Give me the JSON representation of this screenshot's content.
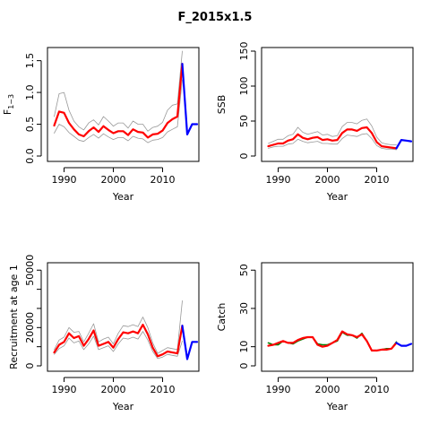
{
  "title": "F_2015x1.5",
  "chart_data": [
    {
      "type": "line",
      "xlabel": "Year",
      "ylabel": "F",
      "ylabel_sub": "1−3",
      "xlim": [
        1987,
        2017
      ],
      "ylim": [
        0,
        1.65
      ],
      "xticks": [
        1990,
        2000,
        2010
      ],
      "yticks": [
        0.0,
        0.5,
        1.0,
        1.5
      ],
      "yticklabels": [
        "0.0",
        "0.5",
        "1.0",
        "1.5"
      ],
      "colors": {
        "estimate": "#ff0000",
        "interval": "#999999",
        "projection": "#0000ff"
      },
      "series": [
        {
          "role": "estimate",
          "x": [
            1988,
            1989,
            1990,
            1991,
            1992,
            1993,
            1994,
            1995,
            1996,
            1997,
            1998,
            1999,
            2000,
            2001,
            2002,
            2003,
            2004,
            2005,
            2006,
            2007,
            2008,
            2009,
            2010,
            2011,
            2012,
            2013,
            2014
          ],
          "values": [
            0.48,
            0.7,
            0.68,
            0.52,
            0.42,
            0.34,
            0.31,
            0.39,
            0.45,
            0.38,
            0.47,
            0.41,
            0.36,
            0.39,
            0.39,
            0.33,
            0.42,
            0.38,
            0.37,
            0.29,
            0.34,
            0.35,
            0.4,
            0.52,
            0.58,
            0.62,
            1.45
          ]
        },
        {
          "role": "interval",
          "x": [
            1988,
            1989,
            1990,
            1991,
            1992,
            1993,
            1994,
            1995,
            1996,
            1997,
            1998,
            1999,
            2000,
            2001,
            2002,
            2003,
            2004,
            2005,
            2006,
            2007,
            2008,
            2009,
            2010,
            2011,
            2012,
            2013,
            2014
          ],
          "values": [
            0.62,
            0.98,
            1.0,
            0.72,
            0.55,
            0.46,
            0.41,
            0.52,
            0.57,
            0.49,
            0.62,
            0.55,
            0.47,
            0.52,
            0.52,
            0.44,
            0.55,
            0.5,
            0.5,
            0.39,
            0.45,
            0.47,
            0.53,
            0.72,
            0.8,
            0.82,
            1.65
          ]
        },
        {
          "role": "interval",
          "x": [
            1988,
            1989,
            1990,
            1991,
            1992,
            1993,
            1994,
            1995,
            1996,
            1997,
            1998,
            1999,
            2000,
            2001,
            2002,
            2003,
            2004,
            2005,
            2006,
            2007,
            2008,
            2009,
            2010,
            2011,
            2012,
            2013,
            2014
          ],
          "values": [
            0.36,
            0.5,
            0.46,
            0.37,
            0.31,
            0.25,
            0.23,
            0.29,
            0.34,
            0.28,
            0.35,
            0.3,
            0.26,
            0.29,
            0.29,
            0.24,
            0.31,
            0.28,
            0.27,
            0.21,
            0.25,
            0.26,
            0.29,
            0.38,
            0.42,
            0.46,
            1.2
          ]
        },
        {
          "role": "projection",
          "x": [
            2014,
            2015,
            2016,
            2017
          ],
          "values": [
            1.45,
            0.34,
            0.5,
            0.5
          ]
        }
      ]
    },
    {
      "type": "line",
      "xlabel": "Year",
      "ylabel": "SSB",
      "xlim": [
        1987,
        2017
      ],
      "ylim": [
        0,
        150
      ],
      "xticks": [
        1990,
        2000,
        2010
      ],
      "yticks": [
        0,
        50,
        100,
        150
      ],
      "yticklabels": [
        "0",
        "50",
        "100",
        "150"
      ],
      "colors": {
        "estimate": "#ff0000",
        "interval": "#999999",
        "projection": "#0000ff"
      },
      "series": [
        {
          "role": "estimate",
          "x": [
            1988,
            1989,
            1990,
            1991,
            1992,
            1993,
            1994,
            1995,
            1996,
            1997,
            1998,
            1999,
            2000,
            2001,
            2002,
            2003,
            2004,
            2005,
            2006,
            2007,
            2008,
            2009,
            2010,
            2011,
            2012,
            2013,
            2014
          ],
          "values": [
            14,
            16,
            18,
            18,
            22,
            24,
            31,
            26,
            24,
            26,
            27,
            23,
            24,
            22,
            23,
            33,
            38,
            38,
            36,
            40,
            41,
            33,
            20,
            14,
            13,
            12,
            11
          ]
        },
        {
          "role": "interval",
          "x": [
            1988,
            1989,
            1990,
            1991,
            1992,
            1993,
            1994,
            1995,
            1996,
            1997,
            1998,
            1999,
            2000,
            2001,
            2002,
            2003,
            2004,
            2005,
            2006,
            2007,
            2008,
            2009,
            2010,
            2011,
            2012,
            2013,
            2014
          ],
          "values": [
            18,
            21,
            24,
            24,
            29,
            31,
            41,
            34,
            31,
            33,
            35,
            30,
            31,
            28,
            29,
            42,
            48,
            48,
            46,
            51,
            53,
            43,
            27,
            19,
            17,
            16,
            16
          ]
        },
        {
          "role": "interval",
          "x": [
            1988,
            1989,
            1990,
            1991,
            1992,
            1993,
            1994,
            1995,
            1996,
            1997,
            1998,
            1999,
            2000,
            2001,
            2002,
            2003,
            2004,
            2005,
            2006,
            2007,
            2008,
            2009,
            2010,
            2011,
            2012,
            2013,
            2014
          ],
          "values": [
            11,
            13,
            14,
            14,
            17,
            18,
            24,
            21,
            19,
            20,
            21,
            18,
            18,
            17,
            17,
            25,
            30,
            29,
            28,
            31,
            32,
            25,
            15,
            11,
            10,
            10,
            9
          ]
        },
        {
          "role": "projection",
          "x": [
            2014,
            2015,
            2016,
            2017
          ],
          "values": [
            11,
            23,
            22,
            21
          ]
        }
      ]
    },
    {
      "type": "line",
      "xlabel": "Year",
      "ylabel": "Recruitment at age 1",
      "xlim": [
        1987,
        2017
      ],
      "ylim": [
        0,
        52000
      ],
      "xticks": [
        1990,
        2000,
        2010
      ],
      "yticks": [
        0,
        10000,
        20000,
        30000,
        40000,
        50000
      ],
      "yticklabels": [
        "0",
        "",
        "20000",
        "",
        "",
        "50000"
      ],
      "colors": {
        "estimate": "#ff0000",
        "interval": "#999999",
        "projection": "#0000ff"
      },
      "series": [
        {
          "role": "estimate",
          "x": [
            1988,
            1989,
            1990,
            1991,
            1992,
            1993,
            1994,
            1995,
            1996,
            1997,
            1998,
            1999,
            2000,
            2001,
            2002,
            2003,
            2004,
            2005,
            2006,
            2007,
            2008,
            2009,
            2010,
            2011,
            2012,
            2013,
            2014
          ],
          "values": [
            7000,
            11000,
            12500,
            17000,
            14500,
            15500,
            10500,
            14000,
            18500,
            10500,
            11500,
            12500,
            9500,
            14000,
            17500,
            17000,
            18000,
            17000,
            21500,
            16500,
            9500,
            5000,
            6000,
            7500,
            7000,
            6500,
            21000
          ]
        },
        {
          "role": "interval",
          "x": [
            1988,
            1989,
            1990,
            1991,
            1992,
            1993,
            1994,
            1995,
            1996,
            1997,
            1998,
            1999,
            2000,
            2001,
            2002,
            2003,
            2004,
            2005,
            2006,
            2007,
            2008,
            2009,
            2010,
            2011,
            2012,
            2013,
            2014
          ],
          "values": [
            8500,
            13500,
            15000,
            20000,
            17500,
            18000,
            12500,
            17000,
            22000,
            12500,
            14000,
            15000,
            11500,
            17000,
            21000,
            20500,
            21500,
            20500,
            25500,
            20000,
            12000,
            6500,
            8000,
            9500,
            9000,
            8500,
            34000
          ]
        },
        {
          "role": "interval",
          "x": [
            1988,
            1989,
            1990,
            1991,
            1992,
            1993,
            1994,
            1995,
            1996,
            1997,
            1998,
            1999,
            2000,
            2001,
            2002,
            2003,
            2004,
            2005,
            2006,
            2007,
            2008,
            2009,
            2010,
            2011,
            2012,
            2013,
            2014
          ],
          "values": [
            6000,
            9000,
            10500,
            14500,
            12000,
            13000,
            8500,
            11500,
            15500,
            8500,
            9500,
            10500,
            7500,
            11500,
            14500,
            14000,
            15000,
            14000,
            18000,
            13500,
            7500,
            3800,
            4600,
            6000,
            5500,
            5000,
            13000
          ]
        },
        {
          "role": "projection",
          "x": [
            2014,
            2015,
            2016,
            2017
          ],
          "values": [
            21000,
            3500,
            12500,
            12500
          ]
        }
      ]
    },
    {
      "type": "line",
      "xlabel": "Year",
      "ylabel": "Catch",
      "xlim": [
        1987,
        2017
      ],
      "ylim": [
        0,
        52
      ],
      "xticks": [
        1990,
        2000,
        2010
      ],
      "yticks": [
        0,
        10,
        30,
        50
      ],
      "yticklabels": [
        "0",
        "10",
        "30",
        "50"
      ],
      "colors": {
        "estimate": "#ff0000",
        "observed": "#008000",
        "projection": "#0000ff"
      },
      "series": [
        {
          "role": "observed",
          "x": [
            1988,
            1989,
            1990,
            1991,
            1992,
            1993,
            1994,
            1995,
            1996,
            1997,
            1998,
            1999,
            2000,
            2001,
            2002,
            2003,
            2004,
            2005,
            2006,
            2007,
            2008,
            2009,
            2010,
            2011,
            2012,
            2013,
            2014
          ],
          "values": [
            12.0,
            11.0,
            11.0,
            13.0,
            12.0,
            11.5,
            13.0,
            14.0,
            15.0,
            15.0,
            11.5,
            11.0,
            11.0,
            12.0,
            13.0,
            17.5,
            16.0,
            16.0,
            14.5,
            17.0,
            13.0,
            8.0,
            8.0,
            8.5,
            9.0,
            9.0,
            12.5
          ]
        },
        {
          "role": "estimate",
          "x": [
            1988,
            1989,
            1990,
            1991,
            1992,
            1993,
            1994,
            1995,
            1996,
            1997,
            1998,
            1999,
            2000,
            2001,
            2002,
            2003,
            2004,
            2005,
            2006,
            2007,
            2008,
            2009,
            2010,
            2011,
            2012,
            2013,
            2014
          ],
          "values": [
            10.5,
            11.0,
            12.0,
            13.0,
            12.0,
            12.0,
            13.5,
            14.5,
            15.0,
            15.0,
            11.0,
            10.0,
            10.5,
            12.0,
            13.5,
            18.0,
            16.5,
            16.0,
            15.0,
            16.5,
            13.0,
            8.0,
            8.0,
            8.5,
            8.5,
            9.0,
            12.0
          ]
        },
        {
          "role": "projection",
          "x": [
            2014,
            2015,
            2016,
            2017
          ],
          "values": [
            12.0,
            10.5,
            10.5,
            11.5
          ]
        }
      ]
    }
  ]
}
